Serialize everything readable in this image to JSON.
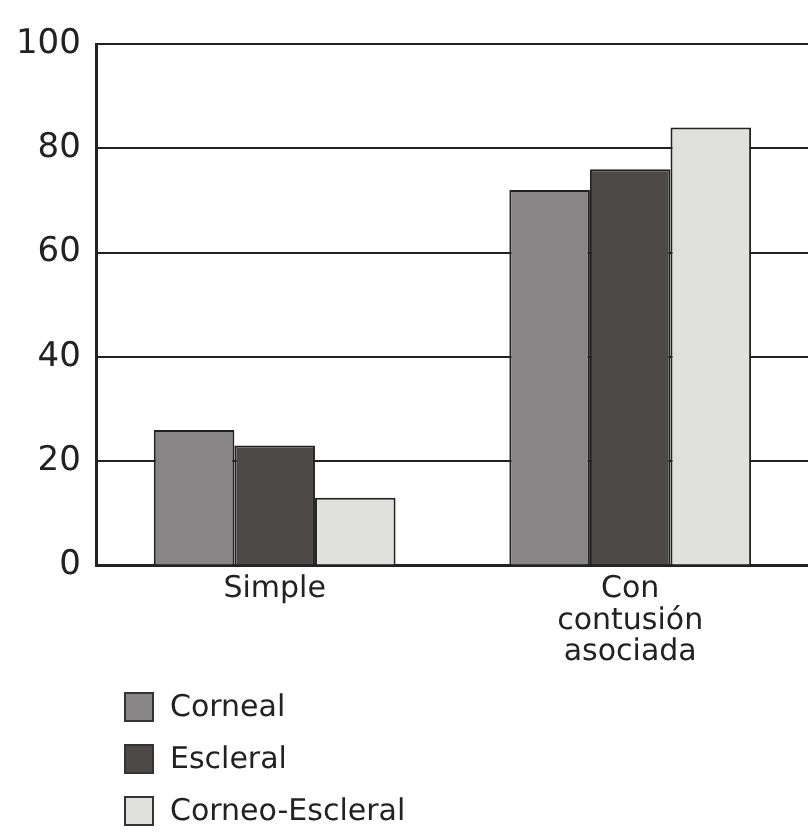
{
  "chart_data": {
    "type": "bar",
    "categories": [
      "Simple",
      "Con contusión asociada"
    ],
    "series": [
      {
        "name": "Corneal",
        "color": "#878586",
        "values": [
          26,
          72
        ]
      },
      {
        "name": "Escleral",
        "color": "#4d4948",
        "values": [
          23,
          76
        ]
      },
      {
        "name": "Corneo-Escleral",
        "color": "#e0e0df",
        "values": [
          13,
          84
        ]
      }
    ],
    "ylim": [
      0,
      100
    ],
    "yticks": [
      0,
      20,
      40,
      60,
      80,
      100
    ],
    "grid": "y",
    "legend": "bottom left"
  }
}
